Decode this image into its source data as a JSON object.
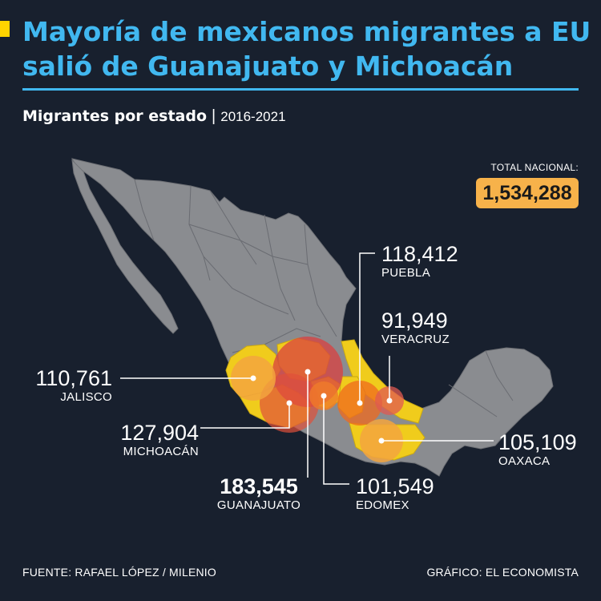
{
  "header": {
    "title": "Mayoría de mexicanos migrantes a EU salió de Guanajuato y Michoacán",
    "subtitle_bold": "Migrantes por estado",
    "subtitle_separator": "|",
    "subtitle_period": "2016-2021"
  },
  "total": {
    "label": "TOTAL NACIONAL:",
    "value": "1,534,288"
  },
  "colors": {
    "title": "#41b8f0",
    "accent": "#ffd400",
    "background": "#18202e",
    "land": "#8a8c90",
    "highlight_state": "#f0cc1c",
    "bubble_hot": "#d94040",
    "bubble_mid": "#f06a1e",
    "bubble_warm": "#f3a43e",
    "total_box": "#f7b24a"
  },
  "states": [
    {
      "name": "GUANAJUATO",
      "value": "183,545",
      "migrants": 183545
    },
    {
      "name": "MICHOACÁN",
      "value": "127,904",
      "migrants": 127904
    },
    {
      "name": "PUEBLA",
      "value": "118,412",
      "migrants": 118412
    },
    {
      "name": "JALISCO",
      "value": "110,761",
      "migrants": 110761
    },
    {
      "name": "OAXACA",
      "value": "105,109",
      "migrants": 105109
    },
    {
      "name": "EDOMEX",
      "value": "101,549",
      "migrants": 101549
    },
    {
      "name": "VERACRUZ",
      "value": "91,949",
      "migrants": 91949
    }
  ],
  "footer": {
    "source": "FUENTE: RAFAEL LÓPEZ / MILENIO",
    "credit": "GRÁFICO: EL ECONOMISTA"
  }
}
